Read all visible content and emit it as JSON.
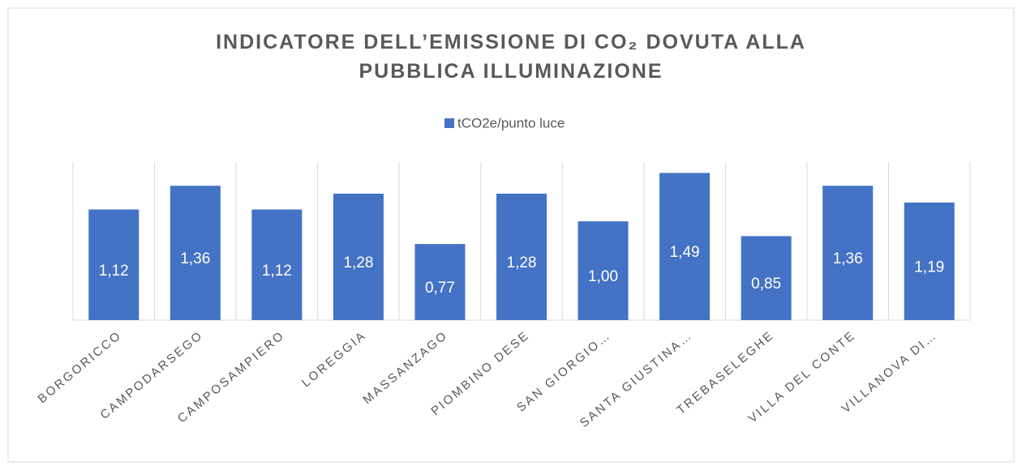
{
  "chart_data": {
    "type": "bar",
    "title": "INDICATORE DELL’EMISSIONE DI CO₂ DOVUTA ALLA PUBBLICA ILLUMINAZIONE",
    "categories": [
      "BORGORICCO",
      "CAMPODARSEGO",
      "CAMPOSAMPIERO",
      "LOREGGIA",
      "MASSANZAGO",
      "PIOMBINO DESE",
      "SAN GIORGIO…",
      "SANTA GIUSTINA…",
      "TREBASELEGHE",
      "VILLA DEL CONTE",
      "VILLANOVA DI…"
    ],
    "series": [
      {
        "name": "tCO2e/punto luce",
        "color": "#4472c4",
        "values": [
          1.12,
          1.36,
          1.12,
          1.28,
          0.77,
          1.28,
          1.0,
          1.49,
          0.85,
          1.36,
          1.19
        ],
        "value_labels": [
          "1,12",
          "1,36",
          "1,12",
          "1,28",
          "0,77",
          "1,28",
          "1,00",
          "1,49",
          "0,85",
          "1,36",
          "1,19"
        ]
      }
    ],
    "ylim": [
      0,
      1.6
    ],
    "legend": "top"
  }
}
